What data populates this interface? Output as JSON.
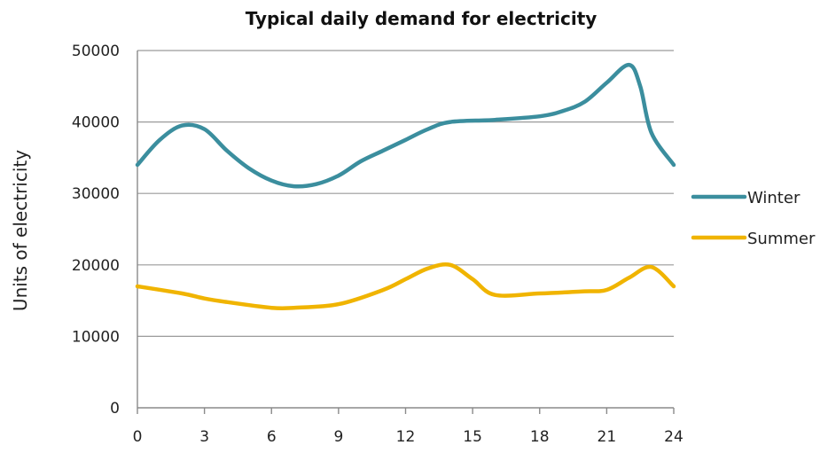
{
  "chart_data": {
    "type": "line",
    "title": "Typical daily demand for electricity",
    "ylabel": "Units of electricity",
    "xlim": [
      0,
      24
    ],
    "ylim": [
      0,
      50000
    ],
    "xticks": [
      0,
      3,
      6,
      9,
      12,
      15,
      18,
      21,
      24
    ],
    "yticks": [
      0,
      10000,
      20000,
      30000,
      40000,
      50000
    ],
    "grid": true,
    "legend_position": "right",
    "series": [
      {
        "name": "Winter",
        "color": "#3b8e9e",
        "points": [
          [
            0,
            34000
          ],
          [
            1,
            37500
          ],
          [
            2,
            39500
          ],
          [
            3,
            39000
          ],
          [
            4,
            36000
          ],
          [
            5,
            33500
          ],
          [
            6,
            31800
          ],
          [
            7,
            31000
          ],
          [
            8,
            31300
          ],
          [
            9,
            32500
          ],
          [
            10,
            34500
          ],
          [
            11,
            36000
          ],
          [
            12,
            37500
          ],
          [
            13,
            39000
          ],
          [
            14,
            40000
          ],
          [
            16,
            40300
          ],
          [
            18,
            40800
          ],
          [
            19,
            41500
          ],
          [
            20,
            42800
          ],
          [
            21,
            45500
          ],
          [
            22,
            48000
          ],
          [
            22.5,
            45000
          ],
          [
            23,
            38500
          ],
          [
            24,
            34000
          ]
        ]
      },
      {
        "name": "Summer",
        "color": "#f0b400",
        "points": [
          [
            0,
            17000
          ],
          [
            2,
            16000
          ],
          [
            3,
            15300
          ],
          [
            4,
            14800
          ],
          [
            6,
            14000
          ],
          [
            7,
            14000
          ],
          [
            9,
            14500
          ],
          [
            11,
            16500
          ],
          [
            12,
            18000
          ],
          [
            13,
            19500
          ],
          [
            14,
            20000
          ],
          [
            15,
            18000
          ],
          [
            16,
            15800
          ],
          [
            18,
            16000
          ],
          [
            20,
            16300
          ],
          [
            21,
            16500
          ],
          [
            22,
            18200
          ],
          [
            23,
            19700
          ],
          [
            24,
            17000
          ]
        ]
      }
    ]
  }
}
